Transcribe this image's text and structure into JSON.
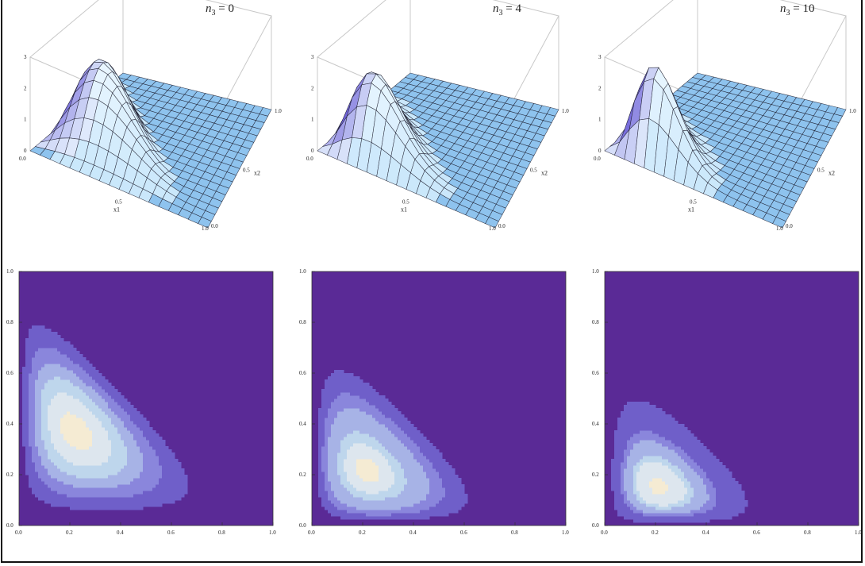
{
  "colors": {
    "surface_top": "#c9e7fb",
    "surface_low": "#8ec3ee",
    "surface_peak": "#e9f6ff",
    "surface_shadow": "#6a5bd6",
    "contour_levels": [
      "#5a2a96",
      "#6f5fc9",
      "#8a86dc",
      "#a7b3e6",
      "#bed6ec",
      "#dde6ee",
      "#f5ebd3"
    ],
    "contour_line": "#6a6a88",
    "box_line": "#c8c8c8",
    "grid_line": "#1a1a2a"
  },
  "panels": [
    {
      "label_var": "n",
      "label_sub": "3",
      "label_eq": "=",
      "label_val": "0"
    },
    {
      "label_var": "n",
      "label_sub": "3",
      "label_eq": "=",
      "label_val": "4"
    },
    {
      "label_var": "n",
      "label_sub": "3",
      "label_eq": "=",
      "label_val": "10"
    }
  ],
  "chart_data": [
    {
      "type": "surface3d",
      "panel": "n3 = 0",
      "n3": 0,
      "xlabel": "x1",
      "ylabel": "x2",
      "zlabel": "",
      "xlim": [
        0,
        1
      ],
      "ylim": [
        0,
        1
      ],
      "zlim": [
        0,
        3
      ],
      "x_ticks": [
        "0.0",
        "0.5",
        "1.0"
      ],
      "y_ticks": [
        "0.0",
        "0.5",
        "1.0"
      ],
      "z_ticks": [
        "0",
        "1",
        "2",
        "3"
      ],
      "peak": {
        "x1": 0.2,
        "x2": 0.4,
        "z": 2.4
      }
    },
    {
      "type": "surface3d",
      "panel": "n3 = 4",
      "n3": 4,
      "xlabel": "x1",
      "ylabel": "x2",
      "zlabel": "",
      "xlim": [
        0,
        1
      ],
      "ylim": [
        0,
        1
      ],
      "zlim": [
        0,
        3
      ],
      "x_ticks": [
        "0.0",
        "0.5",
        "1.0"
      ],
      "y_ticks": [
        "0.0",
        "0.5",
        "1.0"
      ],
      "z_ticks": [
        "0",
        "1",
        "2",
        "3"
      ],
      "peak": {
        "x1": 0.22,
        "x2": 0.27,
        "z": 2.5
      }
    },
    {
      "type": "surface3d",
      "panel": "n3 = 10",
      "n3": 10,
      "xlabel": "x1",
      "ylabel": "x2",
      "zlabel": "",
      "xlim": [
        0,
        1
      ],
      "ylim": [
        0,
        1
      ],
      "zlim": [
        0,
        3
      ],
      "x_ticks": [
        "0.0",
        "0.5",
        "1.0"
      ],
      "y_ticks": [
        "0.0",
        "0.5",
        "1.0"
      ],
      "z_ticks": [
        "0",
        "1",
        "2",
        "3"
      ],
      "peak": {
        "x1": 0.25,
        "x2": 0.18,
        "z": 2.9
      }
    },
    {
      "type": "contour",
      "panel": "n3 = 0",
      "n3": 0,
      "xlim": [
        0,
        1
      ],
      "ylim": [
        0,
        1
      ],
      "x_ticks": [
        "0.0",
        "0.2",
        "0.4",
        "0.6",
        "0.8",
        "1.0"
      ],
      "y_ticks": [
        "0.0",
        "0.2",
        "0.4",
        "0.6",
        "0.8",
        "1.0"
      ],
      "levels": 6,
      "peak": {
        "x": 0.2,
        "y": 0.4
      }
    },
    {
      "type": "contour",
      "panel": "n3 = 4",
      "n3": 4,
      "xlim": [
        0,
        1
      ],
      "ylim": [
        0,
        1
      ],
      "x_ticks": [
        "0.0",
        "0.2",
        "0.4",
        "0.6",
        "0.8",
        "1.0"
      ],
      "y_ticks": [
        "0.0",
        "0.2",
        "0.4",
        "0.6",
        "0.8",
        "1.0"
      ],
      "levels": 7,
      "peak": {
        "x": 0.23,
        "y": 0.27
      }
    },
    {
      "type": "contour",
      "panel": "n3 = 10",
      "n3": 10,
      "xlim": [
        0,
        1
      ],
      "ylim": [
        0,
        1
      ],
      "x_ticks": [
        "0.0",
        "0.2",
        "0.4",
        "0.6",
        "0.8",
        "1.0"
      ],
      "y_ticks": [
        "0.0",
        "0.2",
        "0.4",
        "0.6",
        "0.8",
        "1.0"
      ],
      "levels": 9,
      "peak": {
        "x": 0.25,
        "y": 0.18
      }
    }
  ]
}
